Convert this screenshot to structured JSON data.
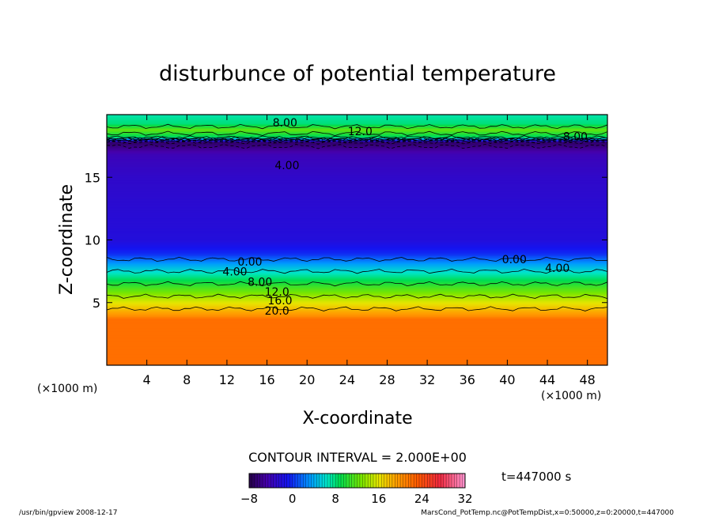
{
  "chart_data": {
    "type": "heatmap",
    "title": "disturbunce of potential temperature",
    "xlabel": "X-coordinate",
    "ylabel": "Z-coordinate",
    "x_unit_left": "(×1000 m)",
    "x_unit_right": "(×1000 m)",
    "xlim": [
      0,
      50
    ],
    "ylim": [
      0,
      20
    ],
    "x_ticks": [
      4,
      8,
      12,
      16,
      20,
      24,
      28,
      32,
      36,
      40,
      44,
      48
    ],
    "y_ticks": [
      5,
      10,
      15
    ],
    "contour_interval_text": "CONTOUR INTERVAL = 2.000E+00",
    "time_text": "t=447000 s",
    "colorbar": {
      "min": -8,
      "max": 32,
      "ticks": [
        -8,
        0,
        8,
        16,
        24,
        32
      ]
    },
    "contour_labels": [
      {
        "text": "8.00",
        "x": 17.8,
        "z": 19.3
      },
      {
        "text": "12.0",
        "x": 25.3,
        "z": 18.6
      },
      {
        "text": "8.00",
        "x": 46.8,
        "z": 18.2
      },
      {
        "text": "4.00",
        "x": 18.0,
        "z": 15.9
      },
      {
        "text": "0.00",
        "x": 14.3,
        "z": 8.2
      },
      {
        "text": "4.00",
        "x": 12.8,
        "z": 7.4
      },
      {
        "text": "8.00",
        "x": 15.3,
        "z": 6.6
      },
      {
        "text": "12.0",
        "x": 17.0,
        "z": 5.8
      },
      {
        "text": "16.0",
        "x": 17.3,
        "z": 5.1
      },
      {
        "text": "20.0",
        "x": 17.0,
        "z": 4.3
      },
      {
        "text": "0.00",
        "x": 40.7,
        "z": 8.4
      },
      {
        "text": "4.00",
        "x": 45.0,
        "z": 7.7
      }
    ],
    "vertical_profile": [
      {
        "z": 0.0,
        "value": 22
      },
      {
        "z": 3.7,
        "value": 22
      },
      {
        "z": 4.0,
        "value": 20
      },
      {
        "z": 5.0,
        "value": 16
      },
      {
        "z": 6.0,
        "value": 12
      },
      {
        "z": 7.0,
        "value": 8
      },
      {
        "z": 8.0,
        "value": 4
      },
      {
        "z": 8.9,
        "value": 0
      },
      {
        "z": 10.0,
        "value": -2
      },
      {
        "z": 15.0,
        "value": -3
      },
      {
        "z": 16.8,
        "value": -4
      },
      {
        "z": 17.8,
        "value": -7
      },
      {
        "z": 18.2,
        "value": 8
      },
      {
        "z": 18.8,
        "value": 12
      },
      {
        "z": 19.3,
        "value": 8
      },
      {
        "z": 20.0,
        "value": 7
      }
    ]
  },
  "footer": {
    "left": "/usr/bin/gpview  2008-12-17",
    "right": "MarsCond_PotTemp.nc@PotTempDist,x=0:50000,z=0:20000,t=447000"
  }
}
